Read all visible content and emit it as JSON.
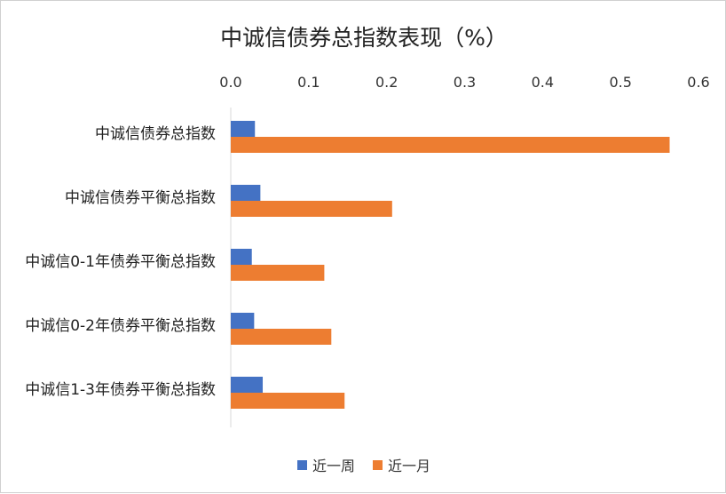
{
  "chart_data": {
    "type": "bar",
    "orientation": "horizontal",
    "title": "中诚信债券总指数表现（%）",
    "categories": [
      "中诚信债券总指数",
      "中诚信债券平衡总指数",
      "中诚信0-1年债券平衡总指数",
      "中诚信0-2年债券平衡总指数",
      "中诚信1-3年债券平衡总指数"
    ],
    "series": [
      {
        "name": "近一周",
        "color": "#4472C4",
        "values": [
          0.031,
          0.038,
          0.027,
          0.03,
          0.041
        ]
      },
      {
        "name": "近一月",
        "color": "#ED7D31",
        "values": [
          0.563,
          0.207,
          0.12,
          0.129,
          0.146
        ]
      }
    ],
    "xlim": [
      0,
      0.6
    ],
    "xticks": [
      "0.0",
      "0.1",
      "0.2",
      "0.3",
      "0.4",
      "0.5",
      "0.6"
    ],
    "xaxis_position": "top",
    "grid": false,
    "legend_position": "bottom"
  }
}
